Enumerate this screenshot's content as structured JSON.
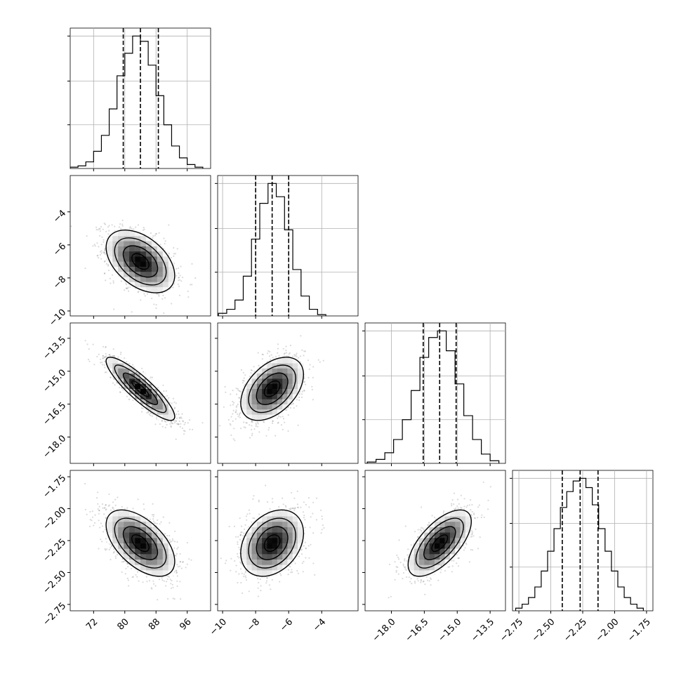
{
  "chart_data": {
    "type": "corner",
    "parameters": [
      {
        "range": [
          66,
          102
        ],
        "ticks": [
          {
            "value": 72,
            "label": "72"
          },
          {
            "value": 80,
            "label": "80"
          },
          {
            "value": 88,
            "label": "88"
          },
          {
            "value": 96,
            "label": "96"
          }
        ],
        "mean": 84.0,
        "std": 4.4,
        "quantiles": [
          79.6,
          84.0,
          88.6
        ],
        "histogram": [
          {
            "bin": 67,
            "count": 0.01
          },
          {
            "bin": 69,
            "count": 0.02
          },
          {
            "bin": 71,
            "count": 0.05
          },
          {
            "bin": 73,
            "count": 0.13
          },
          {
            "bin": 75,
            "count": 0.25
          },
          {
            "bin": 77,
            "count": 0.45
          },
          {
            "bin": 79,
            "count": 0.7
          },
          {
            "bin": 81,
            "count": 0.87
          },
          {
            "bin": 83,
            "count": 1.0
          },
          {
            "bin": 85,
            "count": 0.96
          },
          {
            "bin": 87,
            "count": 0.78
          },
          {
            "bin": 89,
            "count": 0.55
          },
          {
            "bin": 91,
            "count": 0.33
          },
          {
            "bin": 93,
            "count": 0.17
          },
          {
            "bin": 95,
            "count": 0.08
          },
          {
            "bin": 97,
            "count": 0.03
          },
          {
            "bin": 99,
            "count": 0.01
          }
        ]
      },
      {
        "range": [
          -10.3,
          -1.8
        ],
        "ticks": [
          {
            "value": -10,
            "label": "−10"
          },
          {
            "value": -8,
            "label": "−8"
          },
          {
            "value": -6,
            "label": "−6"
          },
          {
            "value": -4,
            "label": "−4"
          }
        ],
        "mean": -7.0,
        "std": 0.95,
        "quantiles": [
          -8.0,
          -7.0,
          -6.0
        ],
        "histogram": [
          {
            "bin": -10.0,
            "count": 0.02
          },
          {
            "bin": -9.5,
            "count": 0.05
          },
          {
            "bin": -9.0,
            "count": 0.12
          },
          {
            "bin": -8.5,
            "count": 0.3
          },
          {
            "bin": -8.0,
            "count": 0.58
          },
          {
            "bin": -7.5,
            "count": 0.85
          },
          {
            "bin": -7.0,
            "count": 1.0
          },
          {
            "bin": -6.5,
            "count": 0.9
          },
          {
            "bin": -6.0,
            "count": 0.65
          },
          {
            "bin": -5.5,
            "count": 0.35
          },
          {
            "bin": -5.0,
            "count": 0.15
          },
          {
            "bin": -4.5,
            "count": 0.05
          },
          {
            "bin": -4.0,
            "count": 0.01
          }
        ]
      },
      {
        "range": [
          -19.2,
          -12.8
        ],
        "ticks": [
          {
            "value": -18.0,
            "label": "−18.0"
          },
          {
            "value": -16.5,
            "label": "−16.5"
          },
          {
            "value": -15.0,
            "label": "−15.0"
          },
          {
            "value": -13.5,
            "label": "−13.5"
          }
        ],
        "mean": -15.8,
        "std": 0.72,
        "quantiles": [
          -16.55,
          -15.8,
          -15.05
        ],
        "histogram": [
          {
            "bin": -18.9,
            "count": 0.01
          },
          {
            "bin": -18.5,
            "count": 0.03
          },
          {
            "bin": -18.1,
            "count": 0.08
          },
          {
            "bin": -17.7,
            "count": 0.18
          },
          {
            "bin": -17.3,
            "count": 0.33
          },
          {
            "bin": -16.9,
            "count": 0.55
          },
          {
            "bin": -16.5,
            "count": 0.8
          },
          {
            "bin": -16.1,
            "count": 0.95
          },
          {
            "bin": -15.7,
            "count": 1.0
          },
          {
            "bin": -15.3,
            "count": 0.85
          },
          {
            "bin": -14.9,
            "count": 0.6
          },
          {
            "bin": -14.5,
            "count": 0.36
          },
          {
            "bin": -14.1,
            "count": 0.18
          },
          {
            "bin": -13.7,
            "count": 0.07
          },
          {
            "bin": -13.3,
            "count": 0.02
          }
        ]
      },
      {
        "range": [
          -2.8,
          -1.7
        ],
        "ticks": [
          {
            "value": -2.75,
            "label": "−2.75"
          },
          {
            "value": -2.5,
            "label": "−2.50"
          },
          {
            "value": -2.25,
            "label": "−2.25"
          },
          {
            "value": -2.0,
            "label": "−2.00"
          },
          {
            "value": -1.75,
            "label": "−1.75"
          }
        ],
        "mean": -2.27,
        "std": 0.13,
        "quantiles": [
          -2.41,
          -2.27,
          -2.13
        ],
        "histogram": [
          {
            "bin": -2.75,
            "count": 0.02
          },
          {
            "bin": -2.7,
            "count": 0.05
          },
          {
            "bin": -2.65,
            "count": 0.1
          },
          {
            "bin": -2.6,
            "count": 0.18
          },
          {
            "bin": -2.55,
            "count": 0.3
          },
          {
            "bin": -2.5,
            "count": 0.45
          },
          {
            "bin": -2.45,
            "count": 0.62
          },
          {
            "bin": -2.4,
            "count": 0.78
          },
          {
            "bin": -2.35,
            "count": 0.9
          },
          {
            "bin": -2.3,
            "count": 0.98
          },
          {
            "bin": -2.25,
            "count": 1.0
          },
          {
            "bin": -2.2,
            "count": 0.93
          },
          {
            "bin": -2.15,
            "count": 0.8
          },
          {
            "bin": -2.1,
            "count": 0.62
          },
          {
            "bin": -2.05,
            "count": 0.45
          },
          {
            "bin": -2.0,
            "count": 0.3
          },
          {
            "bin": -1.95,
            "count": 0.18
          },
          {
            "bin": -1.9,
            "count": 0.1
          },
          {
            "bin": -1.85,
            "count": 0.05
          },
          {
            "bin": -1.8,
            "count": 0.02
          }
        ]
      }
    ],
    "correlations": [
      {
        "row": 1,
        "col": 0,
        "rho": -0.45
      },
      {
        "row": 2,
        "col": 0,
        "rho": -0.88
      },
      {
        "row": 2,
        "col": 1,
        "rho": 0.45
      },
      {
        "row": 3,
        "col": 0,
        "rho": -0.55
      },
      {
        "row": 3,
        "col": 1,
        "rho": 0.3
      },
      {
        "row": 3,
        "col": 2,
        "rho": 0.65
      }
    ],
    "contour_sigmas": [
      0.5,
      1.0,
      1.5,
      2.0
    ],
    "histogram_ticks": [
      0.33,
      0.66,
      1.0
    ],
    "grid": true
  },
  "colors": {
    "line": "#000000",
    "grid": "#b0b0b0",
    "samples": "#555555",
    "density_max": "#000000",
    "density_min": "#ffffff"
  }
}
